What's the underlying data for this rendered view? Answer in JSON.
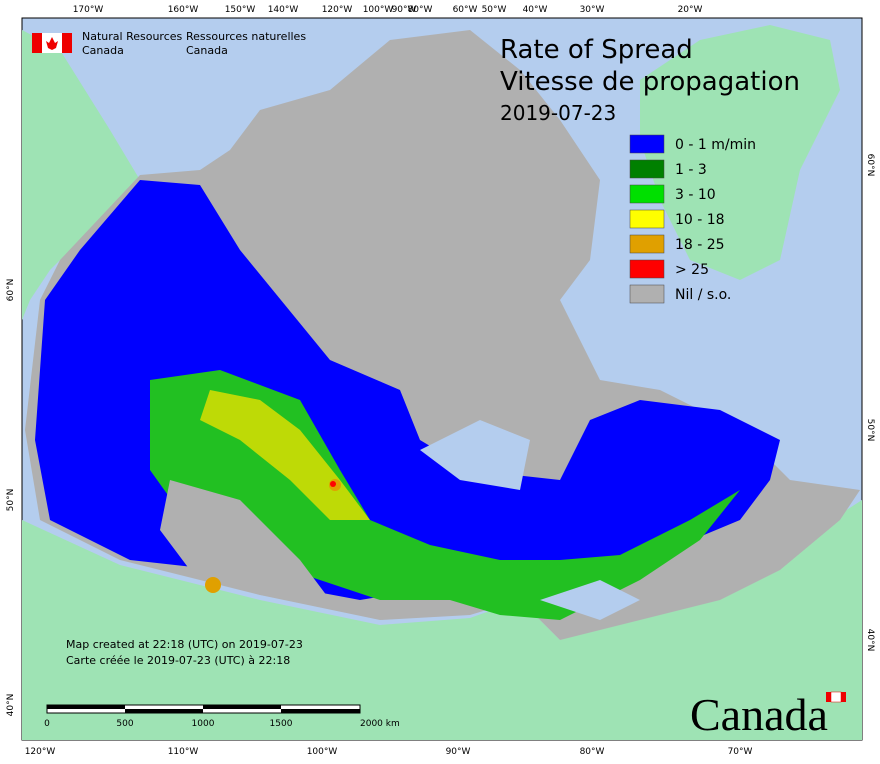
{
  "header": {
    "agency_en": [
      "Natural Resources",
      "Canada"
    ],
    "agency_fr": [
      "Ressources naturelles",
      "Canada"
    ]
  },
  "title": [
    "Rate of Spread",
    "Vitesse de propagation",
    "2019-07-23"
  ],
  "legend": [
    {
      "label": "0 - 1 m/min",
      "color": "#0000ff"
    },
    {
      "label": "1 - 3",
      "color": "#008000"
    },
    {
      "label": "3 - 10",
      "color": "#00e000"
    },
    {
      "label": "10 - 18",
      "color": "#ffff00"
    },
    {
      "label": "18 - 25",
      "color": "#e0a000"
    },
    {
      "label": "> 25",
      "color": "#ff0000"
    },
    {
      "label": "Nil / s.o.",
      "color": "#b0b0b0"
    }
  ],
  "graticule": {
    "top": [
      "170°W",
      "160°W",
      "150°W",
      "140°W",
      "120°W",
      "100°W",
      "90°W",
      "80°W",
      "60°W",
      "50°W",
      "40°W",
      "30°W",
      "20°W"
    ],
    "bottom": [
      "120°W",
      "110°W",
      "100°W",
      "90°W",
      "80°W",
      "70°W"
    ],
    "left": [
      "60°N",
      "50°N",
      "40°N"
    ],
    "right": [
      "60°N",
      "50°N",
      "40°N"
    ]
  },
  "credits": [
    "Map created at 22:18 (UTC) on 2019-07-23",
    "Carte créée le 2019-07-23 (UTC) à 22:18"
  ],
  "scale": [
    "0",
    "500",
    "1000",
    "1500",
    "2000 km"
  ],
  "wordmark": "Canada"
}
